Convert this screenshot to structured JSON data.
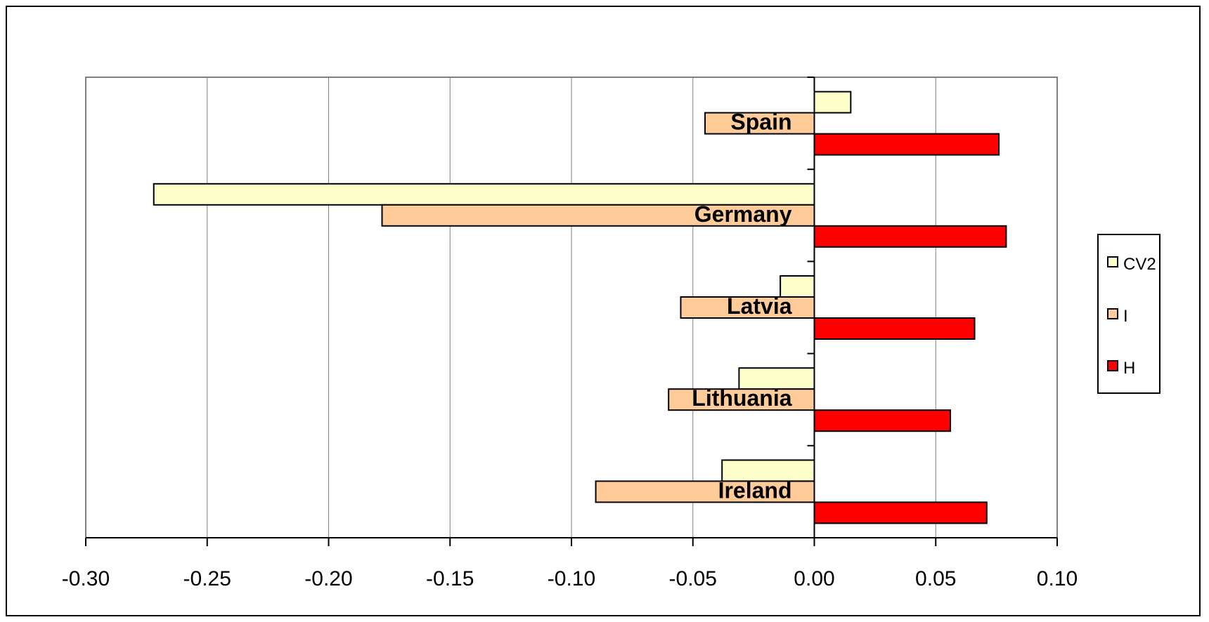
{
  "chart_data": {
    "type": "bar",
    "orientation": "horizontal",
    "categories": [
      "Spain",
      "Germany",
      "Latvia",
      "Lithuania",
      "Ireland"
    ],
    "series": [
      {
        "name": "CV2",
        "color": "#FFFFCC",
        "values": [
          0.015,
          -0.272,
          -0.014,
          -0.031,
          -0.038
        ]
      },
      {
        "name": "I",
        "color": "#FFCC99",
        "values": [
          -0.045,
          -0.178,
          -0.055,
          -0.06,
          -0.09
        ]
      },
      {
        "name": "H",
        "color": "#FF0000",
        "values": [
          0.076,
          0.079,
          0.066,
          0.056,
          0.071
        ]
      }
    ],
    "xlim": [
      -0.3,
      0.1
    ],
    "xticks": [
      "-0.30",
      "-0.25",
      "-0.20",
      "-0.15",
      "-0.10",
      "-0.05",
      "0.00",
      "0.05",
      "0.10"
    ],
    "grid": "vertical",
    "legend_position": "right",
    "title": "",
    "xlabel": "",
    "ylabel": ""
  }
}
